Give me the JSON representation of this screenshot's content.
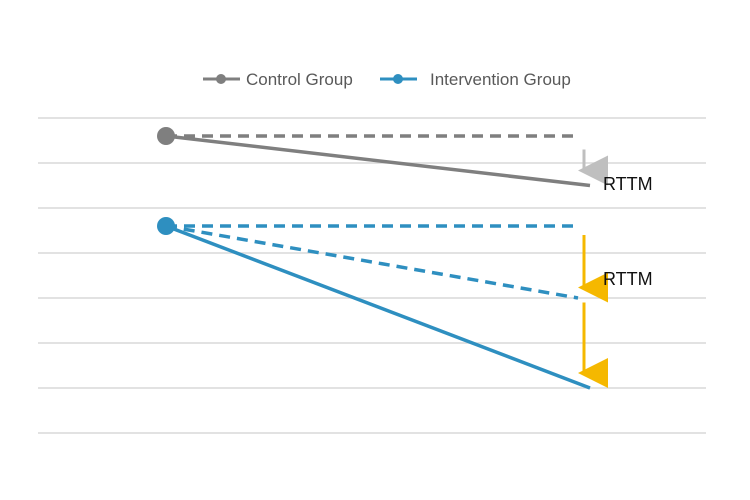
{
  "chart_data": {
    "type": "line",
    "title": "",
    "xlabel": "",
    "ylabel": "",
    "x": [
      0,
      1
    ],
    "ylim": [
      0,
      7
    ],
    "grid": true,
    "gridlines": [
      0,
      1,
      2,
      3,
      4,
      5,
      6,
      7
    ],
    "legend_placement": "top-center",
    "series": [
      {
        "name": "Control Group",
        "color": "#7f7f7f",
        "solid_values": [
          6.6,
          5.5
        ],
        "dashed_values": [
          6.6,
          6.6
        ]
      },
      {
        "name": "Intervention Group",
        "color": "#2e8fc0",
        "solid_values": [
          4.6,
          1.0
        ],
        "dashed_upper_values": [
          4.6,
          4.6
        ],
        "dashed_lower_values": [
          4.6,
          3.0
        ]
      }
    ],
    "annotations": [
      {
        "text": "RTTM",
        "arrow_color": "#bfbfbf",
        "from_y": 6.3,
        "to_y": 5.7
      },
      {
        "text": "RTTM",
        "arrow_color": "#f5b800",
        "from_y": 4.4,
        "to_y": 3.1,
        "second_from_y": 2.9,
        "second_to_y": 1.2
      }
    ]
  }
}
